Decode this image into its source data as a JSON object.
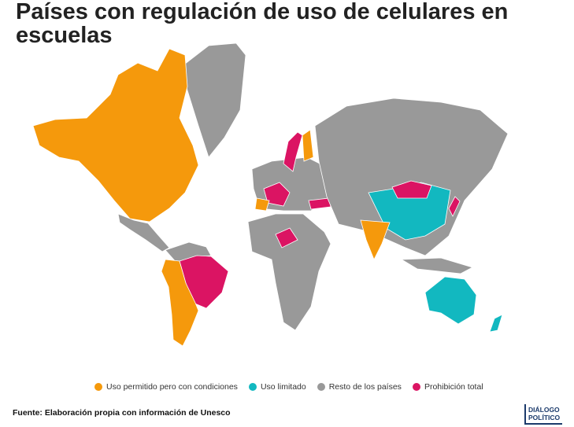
{
  "header": {
    "title": "Países con regulación de uso de celulares en escuelas"
  },
  "legend": [
    {
      "label": "Uso permitido pero con condiciones",
      "color": "#f5990c"
    },
    {
      "label": "Uso limitado",
      "color": "#12b8c0"
    },
    {
      "label": "Resto de los países",
      "color": "#999999"
    },
    {
      "label": "Prohibición total",
      "color": "#db1463"
    }
  ],
  "footer": {
    "source": "Fuente: Elaboración propia con información de Unesco",
    "logo_line1": "DIÁLOGO",
    "logo_line2": "POLÍTICO"
  }
}
